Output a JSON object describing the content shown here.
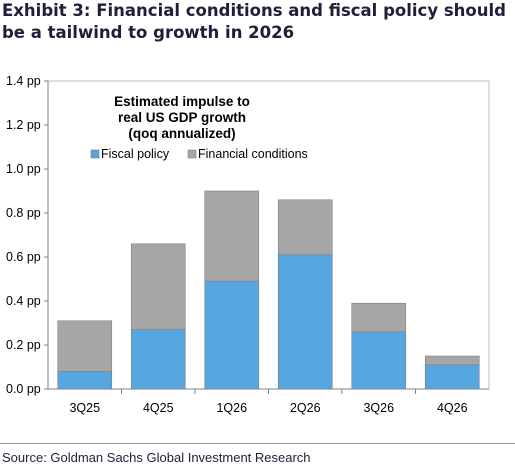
{
  "header": {
    "title": "Exhibit 3: Financial conditions and fiscal policy should be a tailwind to growth in 2026"
  },
  "footer": {
    "source": "Source: Goldman Sachs Global Investment Research"
  },
  "colors": {
    "fiscal": "#56a6e0",
    "financial": "#a6a6a6",
    "axis": "#808080",
    "frame": "#bfbfbf"
  },
  "chart_data": {
    "type": "bar",
    "stacked": true,
    "categories": [
      "3Q25",
      "4Q25",
      "1Q26",
      "2Q26",
      "3Q26",
      "4Q26"
    ],
    "series": [
      {
        "name": "Fiscal policy",
        "values": [
          0.08,
          0.27,
          0.49,
          0.61,
          0.26,
          0.11
        ]
      },
      {
        "name": "Financial conditions",
        "values": [
          0.23,
          0.39,
          0.41,
          0.25,
          0.13,
          0.04
        ]
      }
    ],
    "ylim": [
      0,
      1.4
    ],
    "yticks": [
      {
        "value": 0.0,
        "label": "0.0 pp"
      },
      {
        "value": 0.2,
        "label": "0.2 pp"
      },
      {
        "value": 0.4,
        "label": "0.4 pp"
      },
      {
        "value": 0.6,
        "label": "0.6 pp"
      },
      {
        "value": 0.8,
        "label": "0.8 pp"
      },
      {
        "value": 1.0,
        "label": "1.0 pp"
      },
      {
        "value": 1.2,
        "label": "1.2 pp"
      },
      {
        "value": 1.4,
        "label": "1.4 pp"
      }
    ],
    "annotation": [
      "Estimated impulse to",
      "real US GDP growth",
      "(qoq annualized)"
    ],
    "legend_position": "top-left",
    "grid": false
  }
}
